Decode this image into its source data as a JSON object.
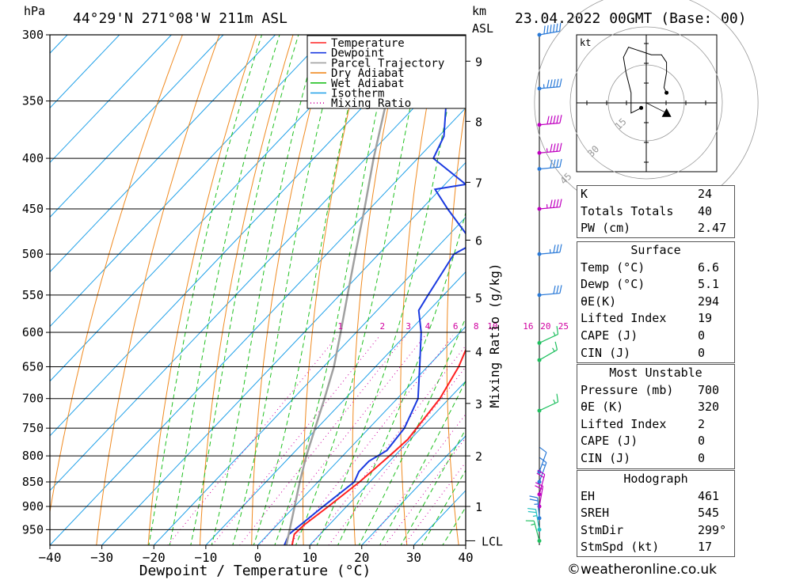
{
  "header": {
    "location": "44°29'N 271°08'W 211m ASL",
    "datetime": "23.04.2022 00GMT (Base: 00)",
    "pressure_unit": "hPa",
    "height_unit": "km",
    "height_ref": "ASL"
  },
  "chart_data": {
    "type": "line",
    "xlabel": "Dewpoint / Temperature (°C)",
    "ylabel_right": "Mixing Ratio (g/kg)",
    "x_ticks": [
      -40,
      -30,
      -20,
      -10,
      0,
      10,
      20,
      30,
      40
    ],
    "xlim": [
      -40,
      40
    ],
    "pressure_ticks": [
      300,
      350,
      400,
      450,
      500,
      550,
      600,
      650,
      700,
      750,
      800,
      850,
      900,
      950
    ],
    "ylim_hpa": [
      985,
      300
    ],
    "y_scale": "log",
    "skew": true,
    "km_ticks": [
      {
        "km": "1",
        "hpa": 900
      },
      {
        "km": "2",
        "hpa": 800
      },
      {
        "km": "3",
        "hpa": 708
      },
      {
        "km": "4",
        "hpa": 627
      },
      {
        "km": "5",
        "hpa": 553
      },
      {
        "km": "6",
        "hpa": 484
      },
      {
        "km": "7",
        "hpa": 423
      },
      {
        "km": "8",
        "hpa": 367
      },
      {
        "km": "9",
        "hpa": 319
      }
    ],
    "lcl": {
      "label": "LCL",
      "hpa": 975
    },
    "mixing_ratio_labels": [
      "1",
      "2",
      "3",
      "4",
      "6",
      "8",
      "10",
      "16",
      "20",
      "25"
    ],
    "mixing_ratio_values": [
      1,
      2,
      3,
      4,
      6,
      8,
      10,
      16,
      20,
      25
    ],
    "legend": [
      "Temperature",
      "Dewpoint",
      "Parcel Trajectory",
      "Dry Adiabat",
      "Wet Adiabat",
      "Isotherm",
      "Mixing Ratio"
    ],
    "series": [
      {
        "name": "Temperature",
        "color": "#ff2020",
        "points": [
          [
            985,
            6.6
          ],
          [
            960,
            5.0
          ],
          [
            940,
            5.2
          ],
          [
            900,
            6.5
          ],
          [
            850,
            8.0
          ],
          [
            800,
            9.0
          ],
          [
            770,
            9.5
          ],
          [
            700,
            8.2
          ],
          [
            650,
            6.0
          ],
          [
            600,
            2.5
          ],
          [
            550,
            -2.0
          ],
          [
            510,
            -5.5
          ],
          [
            495,
            -5.0
          ],
          [
            485,
            -8.0
          ],
          [
            450,
            -12.5
          ],
          [
            400,
            -18.0
          ],
          [
            350,
            -28.0
          ],
          [
            300,
            -37.0
          ],
          [
            295,
            -38.0
          ]
        ]
      },
      {
        "name": "Dewpoint",
        "color": "#1a3ae0",
        "points": [
          [
            985,
            5.1
          ],
          [
            960,
            4.0
          ],
          [
            940,
            4.5
          ],
          [
            900,
            5.5
          ],
          [
            850,
            7.0
          ],
          [
            830,
            6.0
          ],
          [
            810,
            6.0
          ],
          [
            790,
            7.5
          ],
          [
            750,
            6.8
          ],
          [
            700,
            4.0
          ],
          [
            650,
            -1.5
          ],
          [
            600,
            -7.5
          ],
          [
            570,
            -12.0
          ],
          [
            550,
            -13.0
          ],
          [
            500,
            -15.5
          ],
          [
            490,
            -14.0
          ],
          [
            480,
            -16.0
          ],
          [
            450,
            -25.0
          ],
          [
            430,
            -31.0
          ],
          [
            425,
            -26.0
          ],
          [
            400,
            -37.0
          ],
          [
            380,
            -39.0
          ],
          [
            350,
            -45.0
          ],
          [
            310,
            -58.0
          ],
          [
            300,
            -58.0
          ]
        ]
      },
      {
        "name": "Parcel Trajectory",
        "color": "#a0a0a0",
        "points": [
          [
            985,
            5.5
          ],
          [
            900,
            0.0
          ],
          [
            850,
            -3.5
          ],
          [
            800,
            -7.0
          ],
          [
            700,
            -14.0
          ],
          [
            650,
            -18.0
          ],
          [
            600,
            -23.0
          ],
          [
            550,
            -28.5
          ],
          [
            500,
            -34.5
          ],
          [
            450,
            -41.0
          ],
          [
            400,
            -48.5
          ],
          [
            350,
            -56.5
          ],
          [
            310,
            -63.0
          ]
        ]
      }
    ],
    "wind_barbs": [
      {
        "hpa": 300,
        "dir": 260,
        "kt": 60,
        "color": "#2a7ad8"
      },
      {
        "hpa": 340,
        "dir": 265,
        "kt": 55,
        "color": "#2a7ad8"
      },
      {
        "hpa": 370,
        "dir": 265,
        "kt": 50,
        "color": "#c000c0"
      },
      {
        "hpa": 395,
        "dir": 265,
        "kt": 45,
        "color": "#c000c0"
      },
      {
        "hpa": 410,
        "dir": 265,
        "kt": 40,
        "color": "#2a7ad8"
      },
      {
        "hpa": 450,
        "dir": 265,
        "kt": 45,
        "color": "#c000c0"
      },
      {
        "hpa": 500,
        "dir": 265,
        "kt": 35,
        "color": "#2a7ad8"
      },
      {
        "hpa": 550,
        "dir": 265,
        "kt": 30,
        "color": "#2a7ad8"
      },
      {
        "hpa": 615,
        "dir": 245,
        "kt": 15,
        "color": "#20c060"
      },
      {
        "hpa": 640,
        "dir": 240,
        "kt": 15,
        "color": "#20c060"
      },
      {
        "hpa": 720,
        "dir": 245,
        "kt": 15,
        "color": "#20c060"
      },
      {
        "hpa": 830,
        "dir": 200,
        "kt": 10,
        "color": "#2a7ad8"
      },
      {
        "hpa": 850,
        "dir": 200,
        "kt": 15,
        "color": "#2a7ad8"
      },
      {
        "hpa": 875,
        "dir": 195,
        "kt": 20,
        "color": "#c000c0"
      },
      {
        "hpa": 900,
        "dir": 190,
        "kt": 20,
        "color": "#c000c0"
      },
      {
        "hpa": 925,
        "dir": 175,
        "kt": 25,
        "color": "#2a7ad8"
      },
      {
        "hpa": 950,
        "dir": 170,
        "kt": 25,
        "color": "#20c0c0"
      },
      {
        "hpa": 975,
        "dir": 165,
        "kt": 15,
        "color": "#20c060"
      }
    ],
    "hodograph": {
      "unit_label": "kt",
      "ring_labels": [
        "15",
        "30",
        "45"
      ],
      "trace_uv": [
        [
          -2,
          -2
        ],
        [
          -6,
          -4
        ],
        [
          -6,
          4
        ],
        [
          -8,
          12
        ],
        [
          -9,
          18
        ],
        [
          -7,
          22
        ],
        [
          -4,
          21
        ],
        [
          -1,
          20
        ],
        [
          2,
          19
        ],
        [
          6,
          19
        ],
        [
          8,
          16
        ],
        [
          8,
          12
        ],
        [
          7,
          6
        ],
        [
          8,
          4
        ]
      ],
      "storm_motion_uv": [
        8,
        -4
      ]
    }
  },
  "indices": {
    "rows": [
      {
        "label": "K",
        "value": "24"
      },
      {
        "label": "Totals Totals",
        "value": "40"
      },
      {
        "label": "PW (cm)",
        "value": "2.47"
      }
    ]
  },
  "surface": {
    "title": "Surface",
    "rows": [
      {
        "label": "Temp (°C)",
        "value": "6.6"
      },
      {
        "label": "Dewp (°C)",
        "value": "5.1"
      },
      {
        "label": "θE(K)",
        "value": "294"
      },
      {
        "label": "Lifted Index",
        "value": "19"
      },
      {
        "label": "CAPE (J)",
        "value": "0"
      },
      {
        "label": "CIN (J)",
        "value": "0"
      }
    ]
  },
  "most_unstable": {
    "title": "Most Unstable",
    "rows": [
      {
        "label": "Pressure (mb)",
        "value": "700"
      },
      {
        "label": "θE (K)",
        "value": "320"
      },
      {
        "label": "Lifted Index",
        "value": "2"
      },
      {
        "label": "CAPE (J)",
        "value": "0"
      },
      {
        "label": "CIN (J)",
        "value": "0"
      }
    ]
  },
  "hodograph_table": {
    "title": "Hodograph",
    "rows": [
      {
        "label": "EH",
        "value": "461"
      },
      {
        "label": "SREH",
        "value": "545"
      },
      {
        "label": "StmDir",
        "value": "299°"
      },
      {
        "label": "StmSpd (kt)",
        "value": "17"
      }
    ]
  },
  "footer": {
    "credit": "©weatheronline.co.uk"
  }
}
